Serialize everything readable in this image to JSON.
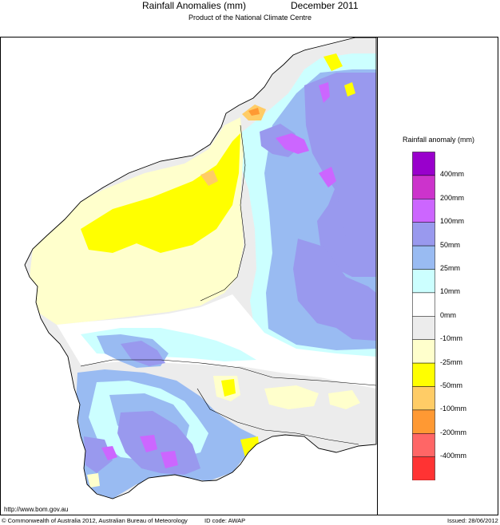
{
  "header": {
    "title": "Rainfall Anomalies (mm)",
    "period": "December 2011",
    "subtitle": "Product of the National Climate Centre"
  },
  "legend": {
    "title": "Rainfall anomaly (mm)",
    "classes": [
      {
        "label": "400mm",
        "color": "#9900cc"
      },
      {
        "label": "200mm",
        "color": "#cc33cc"
      },
      {
        "label": "100mm",
        "color": "#cc66ff"
      },
      {
        "label": "50mm",
        "color": "#9999ee"
      },
      {
        "label": "25mm",
        "color": "#99bbf2"
      },
      {
        "label": "10mm",
        "color": "#ccffff"
      },
      {
        "label": "0mm",
        "color": "#ffffff"
      },
      {
        "label": "-10mm",
        "color": "#ececec"
      },
      {
        "label": "-25mm",
        "color": "#ffffcc"
      },
      {
        "label": "-50mm",
        "color": "#ffff00"
      },
      {
        "label": "-100mm",
        "color": "#ffcc66"
      },
      {
        "label": "-200mm",
        "color": "#ff9933"
      },
      {
        "label": "-400mm",
        "color": "#ff6666"
      },
      {
        "label": "",
        "color": "#ff3333"
      }
    ]
  },
  "footer": {
    "url": "http://www.bom.gov.au",
    "copyright": "© Commonwealth of Australia 2012, Australian Bureau of Meteorology",
    "id_code": "ID code: AWAP",
    "issued": "Issued: 28/06/2012"
  },
  "colors": {
    "ocean": "#ffffff",
    "border": "#000000"
  }
}
